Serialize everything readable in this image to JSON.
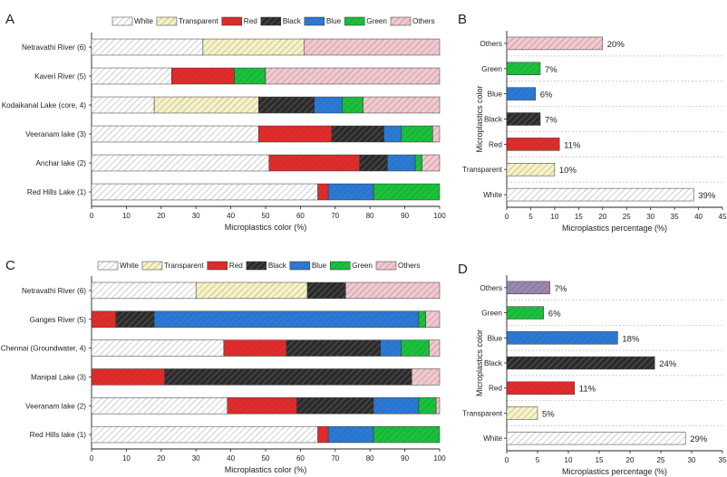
{
  "colors": {
    "White": "#ffffff",
    "Transparent": "#f6f2c4",
    "Red": "#e42a2a",
    "Black": "#2b2b2b",
    "Blue": "#2a7ad8",
    "Green": "#18c23a",
    "Others": "#f2c8ce",
    "Others_D": "#9c86b0"
  },
  "chart_data": [
    {
      "panel": "A",
      "type": "bar",
      "orientation": "horizontal",
      "stacked": true,
      "categories": [
        "Netravathi River (6)",
        "Kaveri River (5)",
        "Kodaikanal Lake (core, 4)",
        "Veeranam lake (3)",
        "Anchar lake (2)",
        "Red Hills Lake (1)"
      ],
      "series": [
        {
          "name": "White",
          "values": [
            32,
            23,
            18,
            48,
            51,
            65
          ]
        },
        {
          "name": "Transparent",
          "values": [
            29,
            0,
            30,
            0,
            0,
            0
          ]
        },
        {
          "name": "Red",
          "values": [
            0,
            18,
            0,
            21,
            26,
            3
          ]
        },
        {
          "name": "Black",
          "values": [
            0,
            0,
            16,
            15,
            8,
            0
          ]
        },
        {
          "name": "Blue",
          "values": [
            0,
            0,
            8,
            5,
            8,
            13
          ]
        },
        {
          "name": "Green",
          "values": [
            0,
            9,
            6,
            9,
            2,
            19
          ]
        },
        {
          "name": "Others",
          "values": [
            39,
            50,
            22,
            2,
            5,
            0
          ]
        }
      ],
      "xlabel": "Microplastics color (%)",
      "ylabel": "",
      "xlim": [
        0,
        100
      ],
      "xticks": [
        "0",
        "10",
        "20",
        "30",
        "40",
        "50",
        "60",
        "70",
        "80",
        "90",
        "100"
      ],
      "legend": "top"
    },
    {
      "panel": "B",
      "type": "bar",
      "orientation": "horizontal",
      "categories": [
        "Others",
        "Green",
        "Blue",
        "Black",
        "Red",
        "Transparent",
        "White"
      ],
      "values": [
        20,
        7,
        6,
        7,
        11,
        10,
        39
      ],
      "data_labels": [
        "20%",
        "7%",
        "6%",
        "7%",
        "11%",
        "10%",
        "39%"
      ],
      "xlabel": "Microplastics percentage (%)",
      "ylabel": "Microplastics color",
      "xlim": [
        0,
        45
      ],
      "xticks": [
        "0",
        "5",
        "10",
        "15",
        "20",
        "25",
        "30",
        "35",
        "40",
        "45"
      ]
    },
    {
      "panel": "C",
      "type": "bar",
      "orientation": "horizontal",
      "stacked": true,
      "categories": [
        "Netravathi River (6)",
        "Ganges River (5)",
        "Chennai (Groundwater, 4)",
        "Manipal Lake (3)",
        "Veeranam lake (2)",
        "Red Hills lake (1)"
      ],
      "series": [
        {
          "name": "White",
          "values": [
            30,
            0,
            38,
            0,
            39,
            65
          ]
        },
        {
          "name": "Transparent",
          "values": [
            32,
            0,
            0,
            0,
            0,
            0
          ]
        },
        {
          "name": "Red",
          "values": [
            0,
            7,
            18,
            21,
            20,
            3
          ]
        },
        {
          "name": "Black",
          "values": [
            11,
            11,
            27,
            71,
            22,
            0
          ]
        },
        {
          "name": "Blue",
          "values": [
            0,
            76,
            6,
            0,
            13,
            13
          ]
        },
        {
          "name": "Green",
          "values": [
            0,
            2,
            8,
            0,
            5,
            19
          ]
        },
        {
          "name": "Others",
          "values": [
            27,
            4,
            3,
            8,
            1,
            0
          ]
        }
      ],
      "xlabel": "Microplastics color (%)",
      "ylabel": "",
      "xlim": [
        0,
        100
      ],
      "xticks": [
        "0",
        "10",
        "20",
        "30",
        "40",
        "50",
        "60",
        "70",
        "80",
        "90",
        "100"
      ],
      "legend": "top"
    },
    {
      "panel": "D",
      "type": "bar",
      "orientation": "horizontal",
      "categories": [
        "Others",
        "Green",
        "Blue",
        "Black",
        "Red",
        "Transparent",
        "White"
      ],
      "values": [
        7,
        6,
        18,
        24,
        11,
        5,
        29
      ],
      "data_labels": [
        "7%",
        "6%",
        "18%",
        "24%",
        "11%",
        "5%",
        "29%"
      ],
      "xlabel": "Microplastics percentage (%)",
      "ylabel": "Microplastics color",
      "xlim": [
        0,
        35
      ],
      "xticks": [
        "0",
        "5",
        "10",
        "15",
        "20",
        "25",
        "30",
        "35"
      ]
    }
  ]
}
